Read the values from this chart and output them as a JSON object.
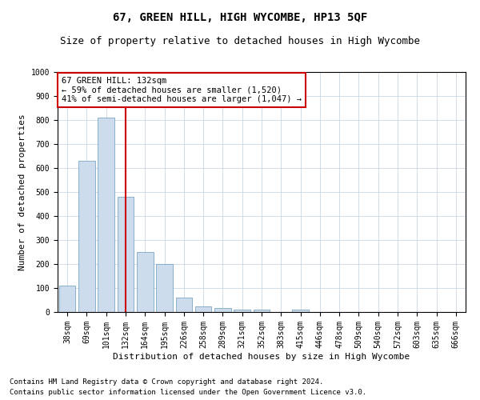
{
  "title": "67, GREEN HILL, HIGH WYCOMBE, HP13 5QF",
  "subtitle": "Size of property relative to detached houses in High Wycombe",
  "xlabel": "Distribution of detached houses by size in High Wycombe",
  "ylabel": "Number of detached properties",
  "footer_line1": "Contains HM Land Registry data © Crown copyright and database right 2024.",
  "footer_line2": "Contains public sector information licensed under the Open Government Licence v3.0.",
  "categories": [
    "38sqm",
    "69sqm",
    "101sqm",
    "132sqm",
    "164sqm",
    "195sqm",
    "226sqm",
    "258sqm",
    "289sqm",
    "321sqm",
    "352sqm",
    "383sqm",
    "415sqm",
    "446sqm",
    "478sqm",
    "509sqm",
    "540sqm",
    "572sqm",
    "603sqm",
    "635sqm",
    "666sqm"
  ],
  "bar_values": [
    110,
    630,
    810,
    480,
    250,
    200,
    60,
    25,
    18,
    10,
    10,
    0,
    10,
    0,
    0,
    0,
    0,
    0,
    0,
    0,
    0
  ],
  "bar_color": "#ccdcec",
  "bar_edge_color": "#6699bb",
  "red_line_index": 3,
  "red_line_color": "#cc0000",
  "annotation_line1": "67 GREEN HILL: 132sqm",
  "annotation_line2": "← 59% of detached houses are smaller (1,520)",
  "annotation_line3": "41% of semi-detached houses are larger (1,047) →",
  "annotation_box_color": "#ffffff",
  "annotation_box_edge_color": "#cc0000",
  "ylim": [
    0,
    1000
  ],
  "yticks": [
    0,
    100,
    200,
    300,
    400,
    500,
    600,
    700,
    800,
    900,
    1000
  ],
  "grid_color": "#c0d0e0",
  "background_color": "#ffffff",
  "title_fontsize": 10,
  "subtitle_fontsize": 9,
  "annotation_fontsize": 7.5,
  "axis_label_fontsize": 8,
  "tick_fontsize": 7,
  "footer_fontsize": 6.5
}
